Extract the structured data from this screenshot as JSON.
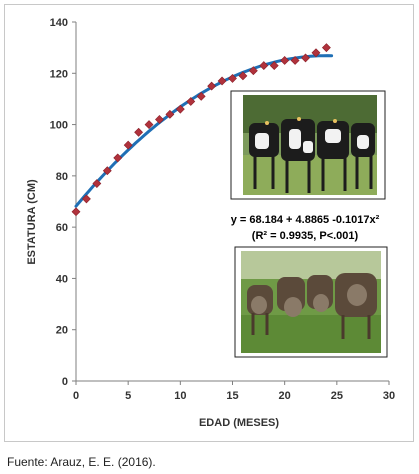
{
  "chart_data": {
    "type": "scatter",
    "title": "",
    "xlabel": "EDAD (MESES)",
    "ylabel": "ESTATURA (CM)",
    "xlim": [
      0,
      30
    ],
    "ylim": [
      0,
      140
    ],
    "xticks": [
      0,
      5,
      10,
      15,
      20,
      25,
      30
    ],
    "yticks": [
      0,
      20,
      40,
      60,
      80,
      100,
      120,
      140
    ],
    "grid": false,
    "series": [
      {
        "kind": "points",
        "marker": "diamond",
        "color": "#b0323c",
        "x": [
          0,
          1,
          2,
          3,
          4,
          5,
          6,
          7,
          8,
          9,
          10,
          11,
          12,
          13,
          14,
          15,
          16,
          17,
          18,
          19,
          20,
          21,
          22,
          23,
          24
        ],
        "y": [
          66,
          71,
          77,
          82,
          87,
          92,
          97,
          100,
          102,
          104,
          106,
          109,
          111,
          115,
          117,
          118,
          119,
          121,
          123,
          123,
          125,
          125,
          126,
          128,
          130
        ]
      },
      {
        "kind": "fit",
        "color": "#1f6fb5",
        "coefficients": [
          68.184,
          4.8865,
          -0.1017
        ],
        "x_range": [
          0,
          24.5
        ]
      }
    ],
    "annotations": {
      "equation": "y = 68.184 + 4.8865 -0.1017x²",
      "stats": "(R² = 0.9935, P<.001)"
    }
  },
  "photos": [
    {
      "subject": "holstein-cows-standing-photo"
    },
    {
      "subject": "brown-swiss-cows-grazing-photo"
    }
  ],
  "source": "Fuente: Arauz, E. E. (2016)."
}
